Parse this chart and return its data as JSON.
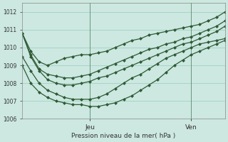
{
  "title": "",
  "xlabel": "Pression niveau de la mer( hPa )",
  "ylabel": "",
  "bg_color": "#cce8e0",
  "grid_color": "#99ccbb",
  "line_color": "#2d5a35",
  "ylim": [
    1006,
    1012.5
  ],
  "xlim": [
    0,
    48
  ],
  "xticks": [
    16,
    40
  ],
  "xticklabels": [
    "Jeu",
    "Ven"
  ],
  "yticks": [
    1006,
    1007,
    1008,
    1009,
    1010,
    1011,
    1012
  ],
  "vlines": [
    16,
    40
  ],
  "series": [
    {
      "x": [
        0,
        2,
        4,
        6,
        8,
        10,
        12,
        14,
        16,
        18,
        20,
        22,
        24,
        26,
        28,
        30,
        32,
        34,
        36,
        38,
        40,
        42,
        44,
        46,
        48
      ],
      "y": [
        1010.8,
        1009.8,
        1009.2,
        1009.0,
        1009.2,
        1009.4,
        1009.5,
        1009.6,
        1009.6,
        1009.7,
        1009.8,
        1010.0,
        1010.2,
        1010.4,
        1010.5,
        1010.7,
        1010.8,
        1010.9,
        1011.0,
        1011.1,
        1011.2,
        1011.3,
        1011.5,
        1011.7,
        1012.0
      ]
    },
    {
      "x": [
        0,
        2,
        4,
        6,
        8,
        10,
        12,
        14,
        16,
        18,
        20,
        22,
        24,
        26,
        28,
        30,
        32,
        34,
        36,
        38,
        40,
        42,
        44,
        46,
        48
      ],
      "y": [
        1010.8,
        1009.6,
        1008.8,
        1008.5,
        1008.4,
        1008.3,
        1008.3,
        1008.4,
        1008.5,
        1008.7,
        1008.9,
        1009.1,
        1009.3,
        1009.5,
        1009.7,
        1009.9,
        1010.0,
        1010.2,
        1010.3,
        1010.5,
        1010.6,
        1010.8,
        1011.0,
        1011.2,
        1011.5
      ]
    },
    {
      "x": [
        0,
        2,
        4,
        6,
        8,
        10,
        12,
        14,
        16,
        18,
        20,
        22,
        24,
        26,
        28,
        30,
        32,
        34,
        36,
        38,
        40,
        42,
        44,
        46,
        48
      ],
      "y": [
        1010.8,
        1009.5,
        1008.7,
        1008.2,
        1008.0,
        1007.9,
        1007.9,
        1008.0,
        1008.1,
        1008.3,
        1008.4,
        1008.6,
        1008.8,
        1009.0,
        1009.2,
        1009.4,
        1009.6,
        1009.8,
        1010.0,
        1010.2,
        1010.3,
        1010.5,
        1010.7,
        1010.9,
        1011.2
      ]
    },
    {
      "x": [
        0,
        2,
        4,
        6,
        8,
        10,
        12,
        14,
        16,
        18,
        20,
        22,
        24,
        26,
        28,
        30,
        32,
        34,
        36,
        38,
        40,
        42,
        44,
        46,
        48
      ],
      "y": [
        1009.5,
        1008.7,
        1008.0,
        1007.6,
        1007.4,
        1007.2,
        1007.1,
        1007.1,
        1007.1,
        1007.2,
        1007.4,
        1007.7,
        1008.0,
        1008.3,
        1008.5,
        1008.8,
        1009.1,
        1009.4,
        1009.6,
        1009.8,
        1010.0,
        1010.2,
        1010.3,
        1010.4,
        1010.5
      ]
    },
    {
      "x": [
        0,
        2,
        4,
        6,
        8,
        10,
        12,
        14,
        16,
        18,
        20,
        22,
        24,
        26,
        28,
        30,
        32,
        34,
        36,
        38,
        40,
        42,
        44,
        46,
        48
      ],
      "y": [
        1009.0,
        1008.0,
        1007.5,
        1007.2,
        1007.0,
        1006.9,
        1006.8,
        1006.8,
        1006.7,
        1006.7,
        1006.8,
        1006.9,
        1007.1,
        1007.3,
        1007.6,
        1007.9,
        1008.2,
        1008.6,
        1009.0,
        1009.3,
        1009.6,
        1009.8,
        1010.0,
        1010.2,
        1010.4
      ]
    }
  ],
  "marker": "D",
  "markersize": 2.0,
  "linewidth": 0.9
}
